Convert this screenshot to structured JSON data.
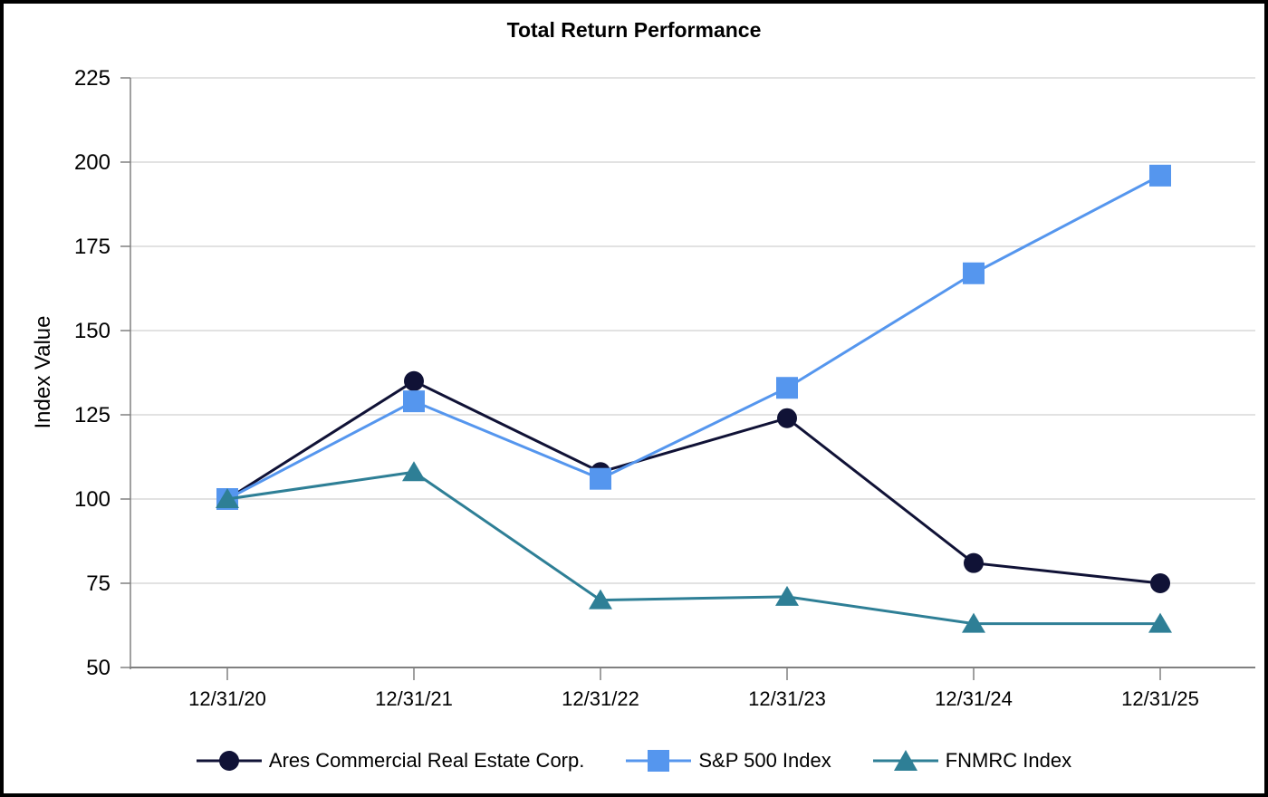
{
  "chart_data": {
    "type": "line",
    "title": "Total Return Performance",
    "xlabel": "",
    "ylabel": "Index Value",
    "ylim": [
      50,
      225
    ],
    "yticks": [
      50,
      75,
      100,
      125,
      150,
      175,
      200,
      225
    ],
    "grid": true,
    "legend_position": "bottom",
    "categories": [
      "12/31/20",
      "12/31/21",
      "12/31/22",
      "12/31/23",
      "12/31/24",
      "12/31/25"
    ],
    "series": [
      {
        "name": "Ares Commercial Real Estate Corp.",
        "marker": "circle",
        "color": "#101236",
        "values": [
          100,
          135,
          108,
          124,
          81,
          75
        ]
      },
      {
        "name": "S&P 500 Index",
        "marker": "square",
        "color": "#5596ee",
        "values": [
          100,
          129,
          106,
          133,
          167,
          196
        ]
      },
      {
        "name": "FNMRC Index",
        "marker": "triangle",
        "color": "#2e7f96",
        "values": [
          100,
          108,
          70,
          71,
          63,
          63
        ]
      }
    ],
    "colors": {
      "gridline": "#d9d9d9",
      "axis": "#808080",
      "text": "#000000",
      "background": "#ffffff"
    }
  }
}
